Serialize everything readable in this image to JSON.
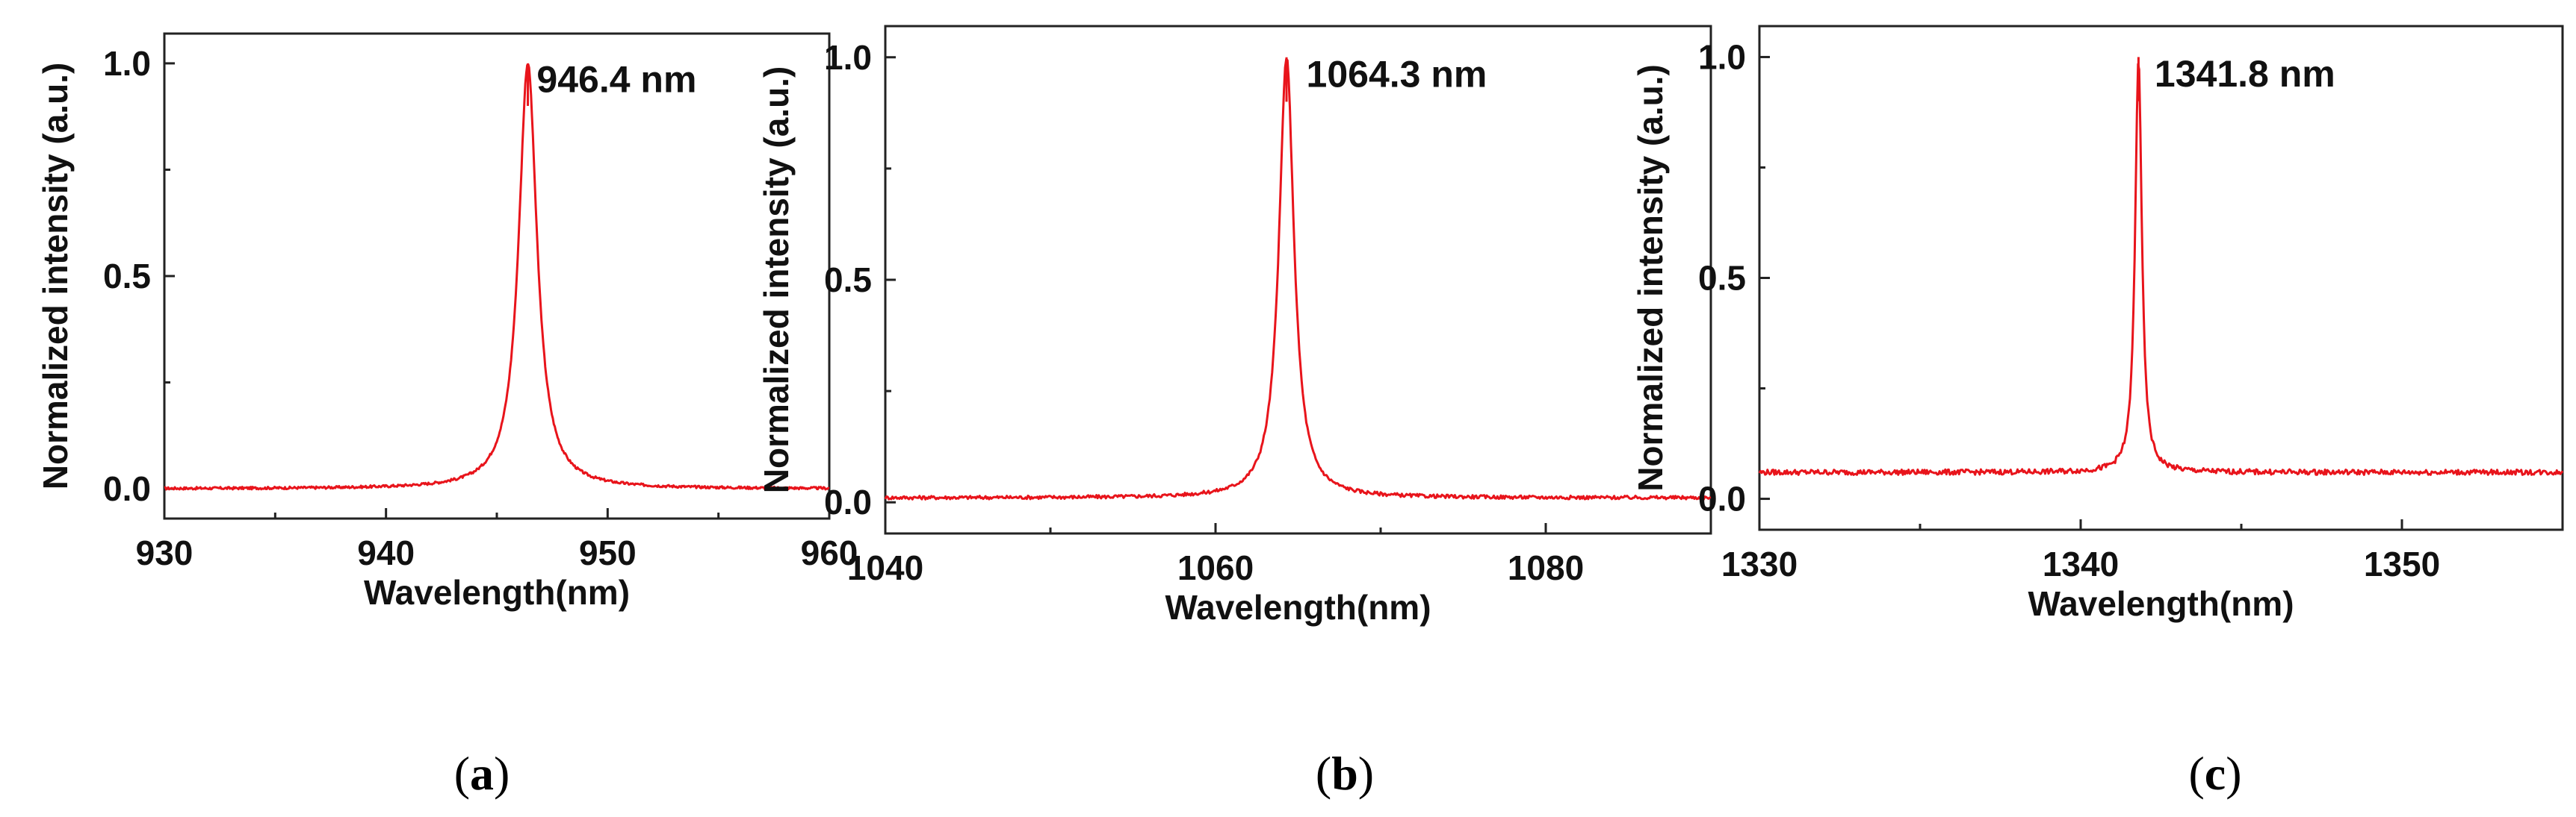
{
  "chart_data": [
    {
      "type": "line",
      "panel": "a",
      "caption": "a",
      "xlabel": "Wavelength(nm)",
      "ylabel": "Normalized intensity (a.u.)",
      "xlim": [
        930,
        960
      ],
      "ylim": [
        -0.07,
        1.07
      ],
      "xticks": [
        930,
        940,
        950,
        960
      ],
      "yticks": [
        0.0,
        0.5,
        1.0
      ],
      "xtick_labels": [
        "930",
        "940",
        "950",
        "960"
      ],
      "ytick_labels": [
        "0.0",
        "0.5",
        "1.0"
      ],
      "series": [
        {
          "name": "spectrum",
          "color": "#e8141b",
          "peak_x": 946.4,
          "peak_y": 1.0,
          "fwhm": 1.0,
          "baseline": 0.0,
          "noise": 0.003
        }
      ],
      "annotation": "946.4 nm",
      "annotation_x": 946.8,
      "annotation_y": 0.95,
      "grid": false
    },
    {
      "type": "line",
      "panel": "b",
      "caption": "b",
      "xlabel": "Wavelength(nm)",
      "ylabel": "Normalized intensity (a.u.)",
      "xlim": [
        1040,
        1090
      ],
      "ylim": [
        -0.07,
        1.07
      ],
      "xticks": [
        1040,
        1060,
        1080
      ],
      "yticks": [
        0.0,
        0.5,
        1.0
      ],
      "xtick_labels": [
        "1040",
        "1060",
        "1080"
      ],
      "ytick_labels": [
        "0.0",
        "0.5",
        "1.0"
      ],
      "series": [
        {
          "name": "spectrum",
          "color": "#e8141b",
          "peak_x": 1064.3,
          "peak_y": 1.0,
          "fwhm": 1.1,
          "baseline": 0.01,
          "noise": 0.004
        }
      ],
      "annotation": "1064.3 nm",
      "annotation_x": 1065.5,
      "annotation_y": 0.95,
      "grid": false
    },
    {
      "type": "line",
      "panel": "c",
      "caption": "c",
      "xlabel": "Wavelength(nm)",
      "ylabel": "Normalized intensity (a.u.)",
      "xlim": [
        1330,
        1355
      ],
      "ylim": [
        -0.07,
        1.07
      ],
      "xticks": [
        1330,
        1340,
        1350
      ],
      "yticks": [
        0.0,
        0.5,
        1.0
      ],
      "xtick_labels": [
        "1330",
        "1340",
        "1350"
      ],
      "ytick_labels": [
        "0.0",
        "0.5",
        "1.0"
      ],
      "series": [
        {
          "name": "spectrum",
          "color": "#e8141b",
          "peak_x": 1341.8,
          "peak_y": 1.0,
          "fwhm": 0.25,
          "baseline": 0.06,
          "noise": 0.006
        }
      ],
      "annotation": "1341.8 nm",
      "annotation_x": 1342.3,
      "annotation_y": 0.95,
      "grid": false
    }
  ]
}
